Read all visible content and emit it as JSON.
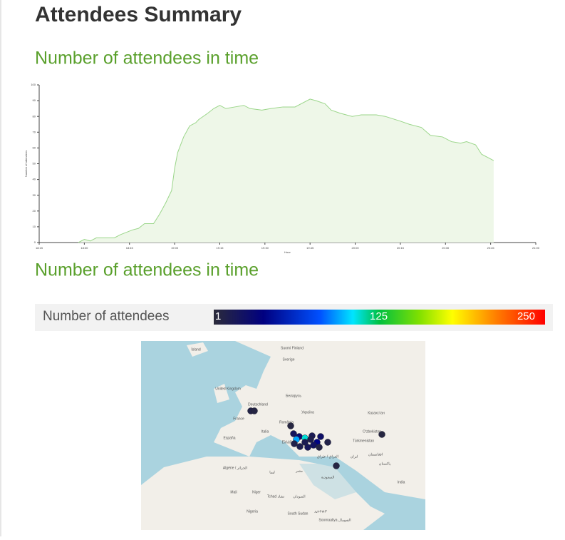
{
  "page": {
    "title": "Attendees Summary",
    "section_1": "Number of attendees in time",
    "section_2": "Number of attendees in time"
  },
  "chart_data": {
    "type": "area",
    "color": "#9bd68a",
    "fill": "#eef7e8",
    "x_label": "Hour",
    "y_label": "Number of attendees",
    "x": [
      "18:28",
      "18:30",
      "18:32",
      "18:34",
      "18:40",
      "18:42",
      "18:46",
      "18:48",
      "18:50",
      "18:53",
      "18:55",
      "18:57",
      "18:59",
      "19:00",
      "19:01",
      "19:03",
      "19:05",
      "19:07",
      "19:08",
      "19:11",
      "19:13",
      "19:15",
      "19:17",
      "19:20",
      "19:23",
      "19:25",
      "19:29",
      "19:32",
      "19:36",
      "19:40",
      "19:45",
      "19:47",
      "19:50",
      "19:52",
      "19:55",
      "19:59",
      "20:02",
      "20:07",
      "20:10",
      "20:15",
      "20:18",
      "20:22",
      "20:25",
      "20:29",
      "20:32",
      "20:35",
      "20:37",
      "20:40",
      "20:42",
      "20:46"
    ],
    "values": [
      0,
      2,
      1,
      3,
      3,
      5,
      8,
      9,
      12,
      12,
      18,
      25,
      33,
      47,
      57,
      67,
      74,
      76,
      78,
      82,
      85,
      87,
      85,
      86,
      87,
      85,
      84,
      85,
      86,
      86,
      91,
      90,
      88,
      84,
      82,
      80,
      81,
      81,
      80,
      77,
      75,
      73,
      68,
      67,
      64,
      63,
      64,
      62,
      56,
      52
    ],
    "xlim": [
      "18:15",
      "21:00"
    ],
    "xticks": [
      "18:15",
      "18:30",
      "18:45",
      "19:00",
      "19:15",
      "19:30",
      "19:45",
      "20:00",
      "20:15",
      "20:30",
      "20:45",
      "21:00"
    ],
    "ylim": [
      0,
      100
    ],
    "yticks": [
      0,
      10,
      20,
      30,
      40,
      50,
      60,
      70,
      80,
      90,
      100
    ]
  },
  "colorbar": {
    "label": "Number of attendees",
    "range": [
      1,
      250
    ],
    "ticks": [
      1,
      125,
      250
    ]
  },
  "map": {
    "labels": [
      "Ísland",
      "Suomi Finland",
      "Sverige",
      "United Kingdom",
      "Беларусь",
      "Deutschland",
      "France",
      "Україна",
      "Казахстан",
      "România",
      "España",
      "Italia",
      "Ελλάδα",
      "Oʻzbekiston",
      "Türkmenistan",
      "Algérie / الجزائر",
      "ليبيا",
      "مصر",
      "السعودية",
      "العراق / عێراق",
      "ایران",
      "افغانستان",
      "پاکستان",
      "Mali",
      "Niger",
      "Tchad تشاد",
      "السودان",
      "India",
      "Nigeria",
      "South Sudan",
      "ኢትዮጵያ",
      "Soomaaliya الصومال"
    ],
    "markers": [
      8,
      6,
      5,
      20,
      30,
      95,
      110,
      15,
      25,
      40,
      10,
      12,
      18,
      22,
      9,
      7,
      14,
      5,
      6,
      11
    ]
  }
}
